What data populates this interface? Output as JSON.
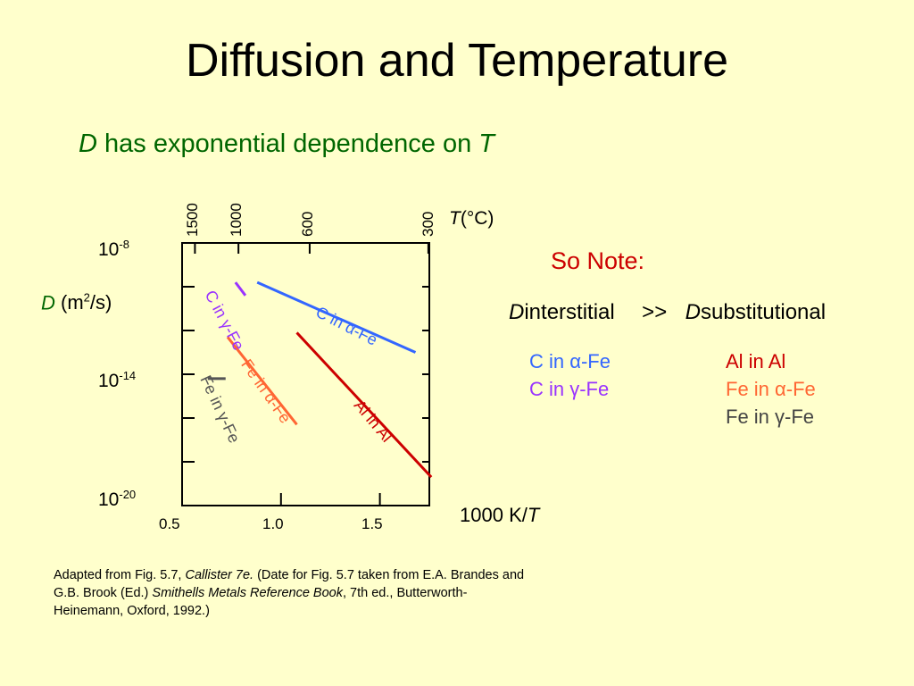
{
  "slide": {
    "title": "Diffusion and Temperature",
    "subtitle_D": "D",
    "subtitle_text": "has exponential dependence on",
    "subtitle_T": "T"
  },
  "chart_data": {
    "type": "line",
    "xlabel_num": "1000",
    "xlabel_unit": "K/",
    "xlabel_T": "T",
    "ylabel_D": "D",
    "ylabel_unit_pre": "(m",
    "ylabel_unit_sup": "2",
    "ylabel_unit_post": "/s)",
    "top_axis_label_T": "T",
    "top_axis_label_unit": "(°C)",
    "x_ticks": [
      "0.5",
      "1.0",
      "1.5"
    ],
    "x_ticks_values": [
      0.5,
      1.0,
      1.5
    ],
    "y_ticks": [
      {
        "base": "10",
        "exp": "-8",
        "value": -8
      },
      {
        "base": "10",
        "exp": "-14",
        "value": -14
      },
      {
        "base": "10",
        "exp": "-20",
        "value": -20
      }
    ],
    "top_ticks": [
      {
        "label": "1500",
        "x": 0.565
      },
      {
        "label": "1000",
        "x": 0.785
      },
      {
        "label": "600",
        "x": 1.145
      },
      {
        "label": "300",
        "x": 1.745
      }
    ],
    "xlim": [
      0.5,
      1.75
    ],
    "ylim": [
      -20,
      -8
    ],
    "y_scale": "log10",
    "series": [
      {
        "name": "C in γ-Fe",
        "color": "#9933ff",
        "x": [
          0.77,
          0.82
        ],
        "y": [
          -9.8,
          -10.4
        ]
      },
      {
        "name": "C in α-Fe",
        "color": "#3366ff",
        "x": [
          0.88,
          1.68
        ],
        "y": [
          -9.8,
          -13.0
        ]
      },
      {
        "name": "Fe in α-Fe",
        "color": "#ff6633",
        "x": [
          0.73,
          1.08
        ],
        "y": [
          -12.3,
          -16.3
        ]
      },
      {
        "name": "Fe in γ-Fe",
        "color": "#555555",
        "x": [
          0.63,
          0.72
        ],
        "y": [
          -14.2,
          -14.2
        ]
      },
      {
        "name": "Al in Al",
        "color": "#cc0000",
        "x": [
          1.08,
          1.76
        ],
        "y": [
          -12.1,
          -18.7
        ]
      }
    ],
    "curve_labels": [
      {
        "text_pre": "C in ",
        "greek": "γ",
        "text_post": "-Fe",
        "color": "#9933ff"
      },
      {
        "text_pre": "C in ",
        "greek": "α",
        "text_post": "-Fe",
        "color": "#3366ff"
      },
      {
        "text_pre": "Fe in ",
        "greek": "α",
        "text_post": "-Fe",
        "color": "#ff6633"
      },
      {
        "text_pre": "Fe in ",
        "greek": "γ",
        "text_post": "-Fe",
        "color": "#555555"
      },
      {
        "text_pre": "Al in Al",
        "greek": "",
        "text_post": "",
        "color": "#cc0000"
      }
    ]
  },
  "note": {
    "heading": "So Note:",
    "D1": "D",
    "sub1": "interstitial",
    "gg": ">>",
    "D2": "D",
    "sub2": "substitutional",
    "interstitial": [
      {
        "text": "C in α-Fe",
        "color": "#3366ff"
      },
      {
        "text": "C in γ-Fe",
        "color": "#9933ff"
      }
    ],
    "substitutional": [
      {
        "text": "Al in Al",
        "color": "#cc0000"
      },
      {
        "text": "Fe in α-Fe",
        "color": "#ff6633"
      },
      {
        "text": "Fe in γ-Fe",
        "color": "#444444"
      }
    ]
  },
  "caption": {
    "p1": "Adapted from Fig. 5.7, ",
    "i1": "Callister 7e.",
    "p2": "  (Date for Fig. 5.7 taken from E.A. Brandes and G.B. Brook (Ed.) ",
    "i2": "Smithells Metals Reference Book",
    "p3": ", 7th ed., Butterworth-Heinemann, Oxford, 1992.)"
  }
}
